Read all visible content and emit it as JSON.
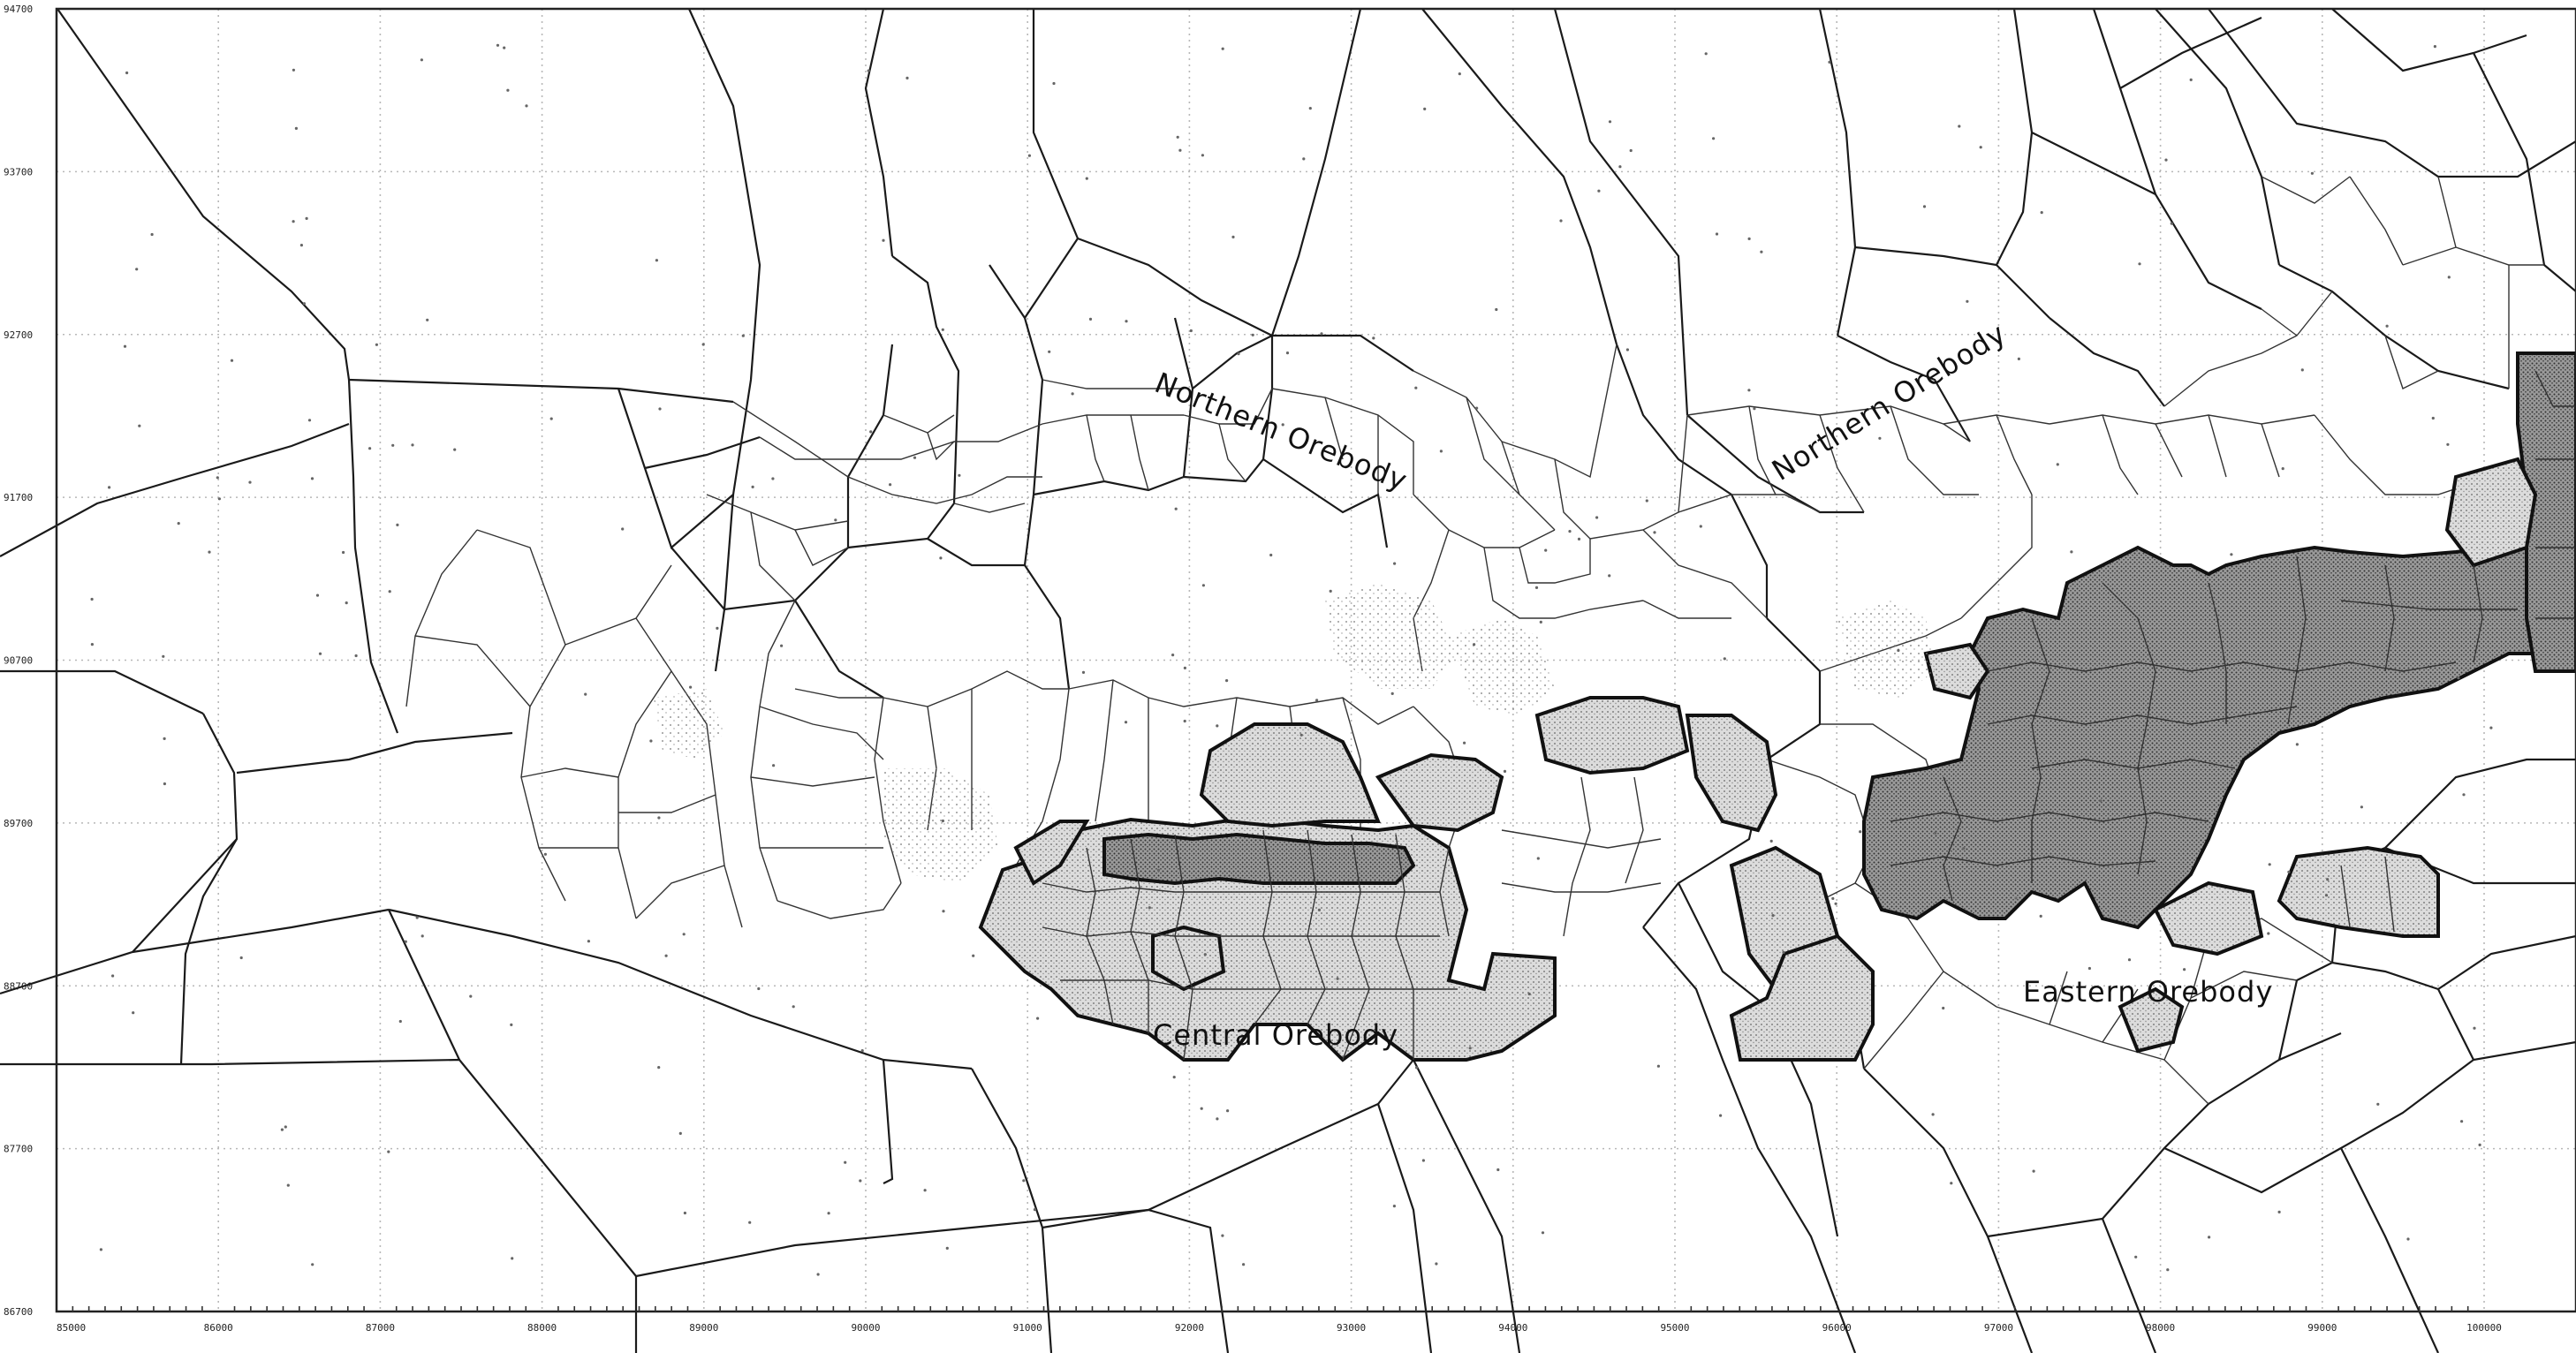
{
  "map": {
    "y_axis_labels": [
      "94700",
      "93700",
      "92700",
      "91700",
      "90700",
      "89700",
      "88700",
      "87700",
      "86700"
    ],
    "x_axis_labels": [
      "85000",
      "86000",
      "87000",
      "88000",
      "89000",
      "90000",
      "91000",
      "92000",
      "93000",
      "94000",
      "95000",
      "96000",
      "97000",
      "98000",
      "99000",
      "100000"
    ],
    "orebodies": {
      "northern_west": "Northern  Orebody",
      "northern_east": "Northern  Orebody",
      "central": "Central  Orebody",
      "eastern": "Eastern  Orebody"
    },
    "colors": {
      "background": "#ffffff",
      "lines": "#1a1a1a",
      "grid": "#b8b8b8",
      "ore_light": "#c9c9c9",
      "ore_dark": "#7a7a7a"
    }
  }
}
